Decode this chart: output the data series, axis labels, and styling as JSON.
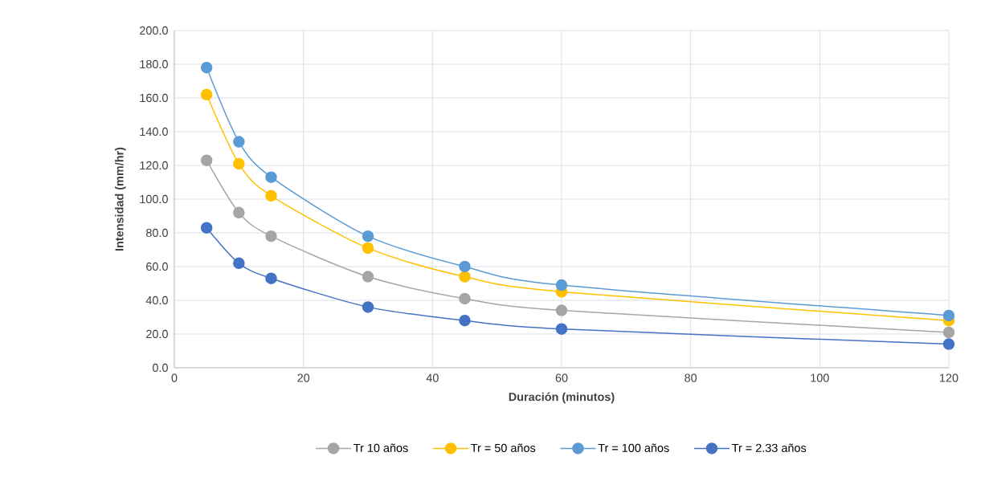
{
  "chart_data": {
    "type": "line",
    "xlabel": "Duración (minutos)",
    "ylabel": "Intensidad (mm/hr)",
    "x": [
      5,
      10,
      15,
      30,
      45,
      60,
      120
    ],
    "series": [
      {
        "name": "Tr 10 años",
        "color": "#a5a5a5",
        "values": [
          123,
          92,
          78,
          54,
          41,
          34,
          21
        ]
      },
      {
        "name": "Tr = 50 años",
        "color": "#ffc000",
        "values": [
          162,
          121,
          102,
          71,
          54,
          45,
          28
        ]
      },
      {
        "name": "Tr = 100 años",
        "color": "#5b9bd5",
        "values": [
          178,
          134,
          113,
          78,
          60,
          49,
          31
        ]
      },
      {
        "name": "Tr = 2.33 años",
        "color": "#4472c4",
        "values": [
          83,
          62,
          53,
          36,
          28,
          23,
          14
        ]
      }
    ],
    "xlim": [
      0,
      120
    ],
    "xticks": [
      0,
      20,
      40,
      60,
      80,
      100,
      120
    ],
    "ylim": [
      0,
      200
    ],
    "yticks": [
      {
        "value": 0,
        "label": "0.0"
      },
      {
        "value": 20,
        "label": "20.0"
      },
      {
        "value": 40,
        "label": "40.0"
      },
      {
        "value": 60,
        "label": "60.0"
      },
      {
        "value": 80,
        "label": "80.0"
      },
      {
        "value": 100,
        "label": "100.0"
      },
      {
        "value": 120,
        "label": "120.0"
      },
      {
        "value": 140,
        "label": "140.0"
      },
      {
        "value": 160,
        "label": "160.0"
      },
      {
        "value": 180,
        "label": "180.0"
      },
      {
        "value": 200,
        "label": "200.0"
      }
    ],
    "grid": true,
    "legend": "bottom",
    "marker": "circle",
    "line_style": "solid"
  }
}
